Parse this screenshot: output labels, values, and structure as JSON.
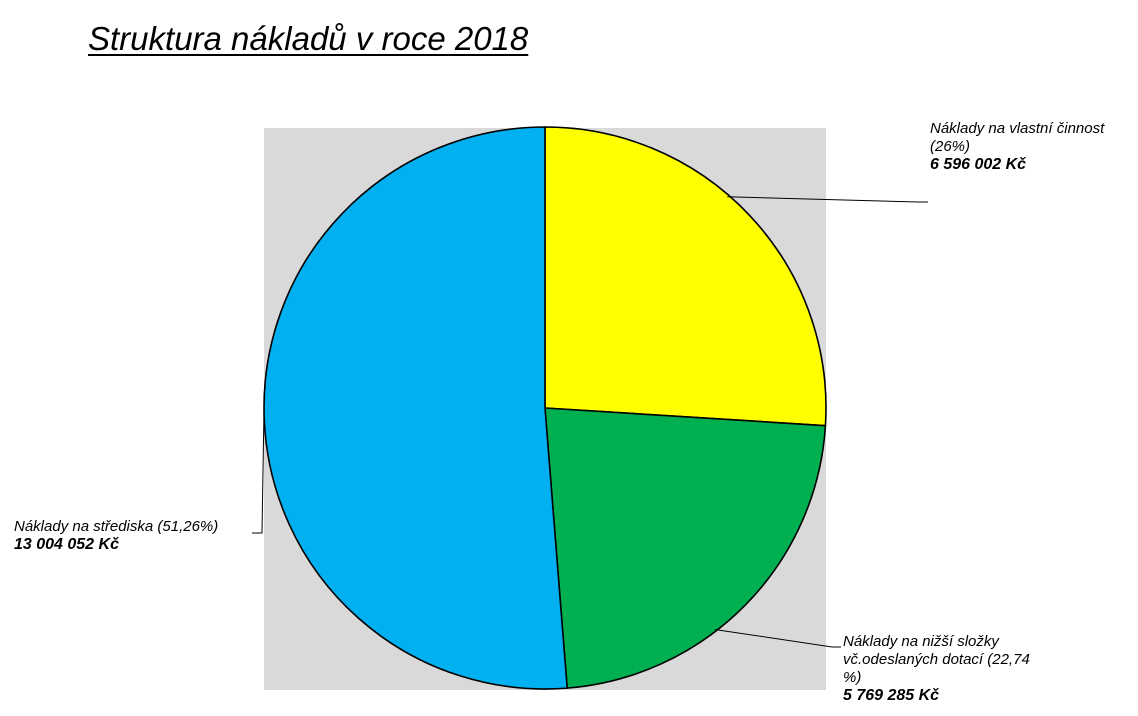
{
  "chart_data": {
    "type": "pie",
    "title": "Struktura nákladů v roce 2018",
    "legend": "none",
    "start_angle_deg": 0,
    "direction": "clockwise",
    "slices": [
      {
        "label_lines": [
          "Náklady na vlastní činnost",
          "(26%)"
        ],
        "amount": "6 596 002 Kč",
        "value": 6596002,
        "percent": 26,
        "color": "#ffff00"
      },
      {
        "label_lines": [
          "Náklady na nižší složky",
          "vč.odeslaných dotací (22,74",
          "%)"
        ],
        "amount": "5 769 285 Kč",
        "value": 5769285,
        "percent": 22.74,
        "color": "#00b050"
      },
      {
        "label_lines": [
          "Náklady na střediska (51,26%)"
        ],
        "amount": "13 004 052 Kč",
        "value": 13004052,
        "percent": 51.26,
        "color": "#00b0f0"
      }
    ]
  }
}
